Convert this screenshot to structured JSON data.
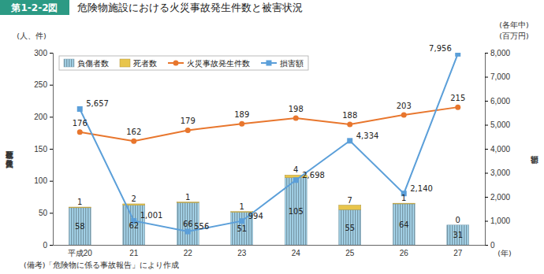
{
  "chart_data": {
    "type": "bar",
    "figure_label": "第1-2-2図",
    "title": "危険物施設における火災事故発生件数と被害状況",
    "categories": [
      "平成20",
      "21",
      "22",
      "23",
      "24",
      "25",
      "26",
      "27"
    ],
    "x_unit": "(年)",
    "y_unit": "(人、件)",
    "y_label": "死傷者数及び火災発生件数",
    "y2_note": "(各年中)",
    "y2_unit": "(百万円)",
    "y2_label": "損害額",
    "note": "(備考)「危険物に係る事故報告」により作成",
    "stacked": true,
    "data_labels": true,
    "grid": false,
    "legend": "upper left",
    "ylim": [
      0,
      300
    ],
    "yticks": [
      0,
      50,
      100,
      150,
      200,
      250,
      300
    ],
    "y2lim": [
      0,
      8000
    ],
    "y2ticks": [
      0,
      {
        "value": 1000,
        "label": "1,000"
      },
      {
        "value": 2000,
        "label": "2,000"
      },
      {
        "value": 3000,
        "label": "3,000"
      },
      {
        "value": 4000,
        "label": "4,000"
      },
      {
        "value": 5000,
        "label": "5,000"
      },
      {
        "value": 6000,
        "label": "6,000"
      },
      {
        "value": 7000,
        "label": "7,000"
      },
      {
        "value": 8000,
        "label": "8,000"
      }
    ],
    "series": [
      {
        "name": "負傷者数",
        "type": "bar",
        "color": "#a9d9ef",
        "values": [
          58,
          62,
          66,
          51,
          105,
          55,
          64,
          31
        ]
      },
      {
        "name": "死者数",
        "type": "bar",
        "color": "#e8c54c",
        "values": [
          1,
          2,
          1,
          1,
          4,
          7,
          1,
          0
        ]
      },
      {
        "name": "火災事故発生件数",
        "type": "line",
        "color": "#e8762d",
        "marker": "circle",
        "values": [
          176,
          162,
          179,
          189,
          198,
          188,
          203,
          215
        ]
      },
      {
        "name": "損害額",
        "type": "line",
        "color": "#5b9fd9",
        "marker": "square",
        "axis": "y2",
        "values": [
          5657,
          1001,
          556,
          994,
          2698,
          4334,
          2140,
          7956
        ],
        "value_labels": [
          "5,657",
          "1,001",
          "556",
          "994",
          "2,698",
          "4,334",
          "2,140",
          "7,956"
        ]
      }
    ]
  }
}
